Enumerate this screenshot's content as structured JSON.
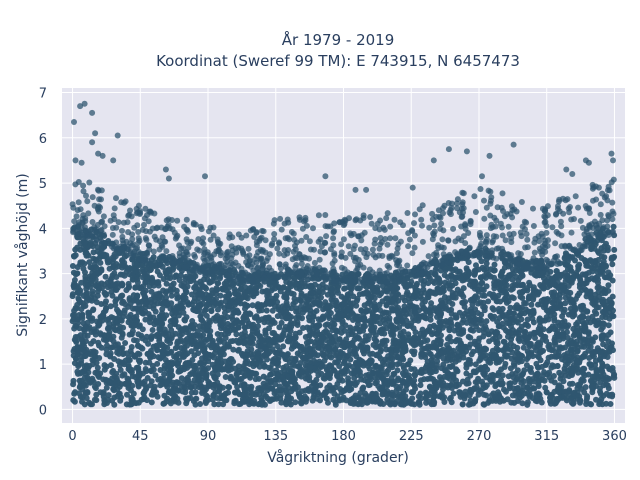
{
  "chart_data": {
    "type": "scatter",
    "title": "År 1979 - 2019",
    "subtitle": "Koordinat (Sweref 99 TM): E 743915, N 6457473",
    "xlabel": "Vågriktning (grader)",
    "ylabel": "Signifikant våghöjd (m)",
    "xlim": [
      -7,
      367
    ],
    "ylim": [
      -0.3,
      7.1
    ],
    "xticks": [
      0,
      45,
      90,
      135,
      180,
      225,
      270,
      315,
      360
    ],
    "yticks": [
      0,
      1,
      2,
      3,
      4,
      5,
      6,
      7
    ],
    "grid": true,
    "legend": "none",
    "marker_color": "#2f5670",
    "plot_background": "#e5e5f0",
    "envelope": {
      "description_units": "upper bound of dense point cloud in metres by direction in degrees",
      "x": [
        0,
        10,
        20,
        30,
        45,
        60,
        75,
        90,
        105,
        120,
        135,
        150,
        165,
        180,
        195,
        210,
        225,
        240,
        255,
        270,
        285,
        300,
        315,
        330,
        345,
        360
      ],
      "y_dense_top": [
        4.1,
        4.0,
        3.9,
        3.7,
        3.5,
        3.4,
        3.3,
        3.2,
        3.1,
        3.0,
        3.1,
        3.1,
        3.1,
        3.0,
        3.0,
        3.0,
        3.1,
        3.3,
        3.5,
        3.6,
        3.5,
        3.3,
        3.3,
        3.5,
        3.9,
        4.1
      ],
      "y_sparse_top": [
        5.0,
        5.1,
        4.9,
        4.7,
        4.5,
        4.3,
        4.2,
        4.1,
        4.0,
        4.0,
        4.2,
        4.3,
        4.4,
        4.3,
        4.3,
        4.4,
        4.5,
        4.6,
        4.8,
        4.9,
        4.8,
        4.6,
        4.6,
        4.8,
        5.0,
        5.1
      ],
      "y_min": 0.1
    },
    "notable_points": [
      {
        "x": 1,
        "y": 6.35
      },
      {
        "x": 5,
        "y": 6.7
      },
      {
        "x": 8,
        "y": 6.75
      },
      {
        "x": 13,
        "y": 6.55
      },
      {
        "x": 15,
        "y": 6.1
      },
      {
        "x": 13,
        "y": 5.9
      },
      {
        "x": 17,
        "y": 5.65
      },
      {
        "x": 20,
        "y": 5.6
      },
      {
        "x": 27,
        "y": 5.5
      },
      {
        "x": 30,
        "y": 6.05
      },
      {
        "x": 2,
        "y": 5.5
      },
      {
        "x": 6,
        "y": 5.45
      },
      {
        "x": 62,
        "y": 5.3
      },
      {
        "x": 64,
        "y": 5.1
      },
      {
        "x": 88,
        "y": 5.15
      },
      {
        "x": 168,
        "y": 5.15
      },
      {
        "x": 250,
        "y": 5.75
      },
      {
        "x": 262,
        "y": 5.7
      },
      {
        "x": 240,
        "y": 5.5
      },
      {
        "x": 277,
        "y": 5.6
      },
      {
        "x": 293,
        "y": 5.85
      },
      {
        "x": 328,
        "y": 5.3
      },
      {
        "x": 341,
        "y": 5.5
      },
      {
        "x": 343,
        "y": 5.45
      },
      {
        "x": 358,
        "y": 5.65
      },
      {
        "x": 359,
        "y": 5.5
      },
      {
        "x": 332,
        "y": 5.2
      },
      {
        "x": 272,
        "y": 5.15
      },
      {
        "x": 188,
        "y": 4.85
      },
      {
        "x": 195,
        "y": 4.85
      },
      {
        "x": 226,
        "y": 4.9
      }
    ]
  }
}
